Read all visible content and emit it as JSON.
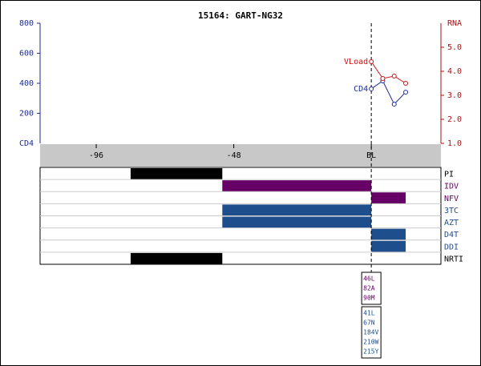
{
  "chart_data": {
    "type": "timeline",
    "title": "15164: GART-NG32",
    "ylabel": "CD4",
    "y2label": "RNA",
    "xlim": [
      -115.6,
      24.3
    ],
    "xticks": [
      -96,
      -48,
      {
        "value": 0,
        "label": "BL"
      }
    ],
    "ylim": [
      0,
      800
    ],
    "yticks": [
      200,
      400,
      600,
      800
    ],
    "y2lim": [
      1,
      6
    ],
    "y2ticks": [
      {
        "value": 1,
        "label": "1.0"
      },
      {
        "value": 2,
        "label": "2.0"
      },
      {
        "value": 3,
        "label": "3.0"
      },
      {
        "value": 4,
        "label": "4.0"
      },
      {
        "value": 5,
        "label": "5.0"
      }
    ],
    "series": [
      {
        "name": "CD4",
        "color": "#1a2a9a",
        "x": [
          0,
          4,
          8,
          12
        ],
        "values": [
          363,
          416,
          261,
          341
        ]
      },
      {
        "name": "VLoad",
        "color": "#cc1111",
        "axis": "y2",
        "x": [
          0,
          4,
          8,
          12
        ],
        "values": [
          4.4,
          3.7,
          3.8,
          3.5
        ]
      }
    ],
    "drugs": [
      {
        "name": "PI",
        "color": "#000000",
        "start": -84,
        "end": -52
      },
      {
        "name": "IDV",
        "color": "#660066",
        "start": -52,
        "end": 0
      },
      {
        "name": "NFV",
        "color": "#660066",
        "start": 0,
        "end": 12
      },
      {
        "name": "3TC",
        "color": "#1f4e8c",
        "start": -52,
        "end": 0
      },
      {
        "name": "AZT",
        "color": "#1f4e8c",
        "start": -52,
        "end": 0
      },
      {
        "name": "D4T",
        "color": "#1f4e8c",
        "start": 0,
        "end": 12
      },
      {
        "name": "DDI",
        "color": "#1f4e8c",
        "start": 0,
        "end": 12
      },
      {
        "name": "NRTI",
        "color": "#000000",
        "start": -84,
        "end": -52
      }
    ],
    "mutations": [
      {
        "color": "#660066",
        "items": [
          "46L",
          "82A",
          "90M"
        ]
      },
      {
        "color": "#1f4e8c",
        "items": [
          "41L",
          "67N",
          "184V",
          "210W",
          "215Y"
        ]
      }
    ]
  }
}
